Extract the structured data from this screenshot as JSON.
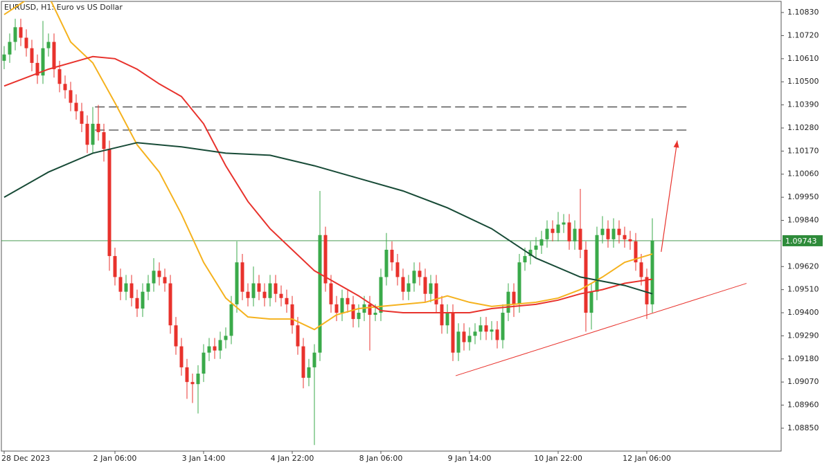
{
  "chart_data": {
    "type": "candlestick",
    "title": "EURUSD, H1:  Euro vs US Dollar",
    "up_color": "#3aaa4a",
    "down_color": "#e8322c",
    "ohlc": [
      [
        1.106,
        1.1067,
        1.1056,
        1.1063
      ],
      [
        1.1063,
        1.1073,
        1.1059,
        1.1069
      ],
      [
        1.1069,
        1.108,
        1.1065,
        1.1076
      ],
      [
        1.1076,
        1.108,
        1.1067,
        1.1071
      ],
      [
        1.1071,
        1.1075,
        1.1062,
        1.1066
      ],
      [
        1.1066,
        1.107,
        1.1055,
        1.1059
      ],
      [
        1.1059,
        1.1063,
        1.1049,
        1.1053
      ],
      [
        1.1053,
        1.1079,
        1.1049,
        1.1066
      ],
      [
        1.1066,
        1.1073,
        1.1062,
        1.1069
      ],
      [
        1.1069,
        1.1073,
        1.1052,
        1.1056
      ],
      [
        1.1056,
        1.106,
        1.1045,
        1.1049
      ],
      [
        1.1049,
        1.1053,
        1.1042,
        1.1046
      ],
      [
        1.1046,
        1.105,
        1.1036,
        1.104
      ],
      [
        1.104,
        1.1044,
        1.1032,
        1.1036
      ],
      [
        1.1036,
        1.104,
        1.1026,
        1.103
      ],
      [
        1.103,
        1.1034,
        1.1016,
        1.102
      ],
      [
        1.102,
        1.1038,
        1.1016,
        1.103
      ],
      [
        1.103,
        1.1039,
        1.1022,
        1.1026
      ],
      [
        1.1026,
        1.103,
        1.1012,
        1.1018
      ],
      [
        1.1018,
        1.1022,
        1.096,
        1.0967
      ],
      [
        1.0967,
        1.0971,
        1.0953,
        1.0957
      ],
      [
        1.0957,
        1.0961,
        1.0946,
        1.095
      ],
      [
        1.095,
        1.0958,
        1.0946,
        1.0954
      ],
      [
        1.0954,
        1.0958,
        1.0943,
        1.0947
      ],
      [
        1.0947,
        1.0951,
        1.0938,
        1.0942
      ],
      [
        1.0942,
        1.0954,
        1.0938,
        1.095
      ],
      [
        1.095,
        1.0958,
        1.0946,
        1.0954
      ],
      [
        1.0954,
        1.0966,
        1.095,
        1.096
      ],
      [
        1.096,
        1.0964,
        1.0953,
        1.0957
      ],
      [
        1.0957,
        1.0961,
        1.095,
        1.0954
      ],
      [
        1.0954,
        1.0958,
        1.093,
        1.0934
      ],
      [
        1.0934,
        1.0938,
        1.092,
        1.0924
      ],
      [
        1.0924,
        1.0928,
        1.091,
        1.0914
      ],
      [
        1.0914,
        1.0918,
        1.0899,
        1.0907
      ],
      [
        1.0907,
        1.0911,
        1.0897,
        1.0906
      ],
      [
        1.0906,
        1.0915,
        1.0892,
        1.0911
      ],
      [
        1.0911,
        1.0925,
        1.0907,
        1.0921
      ],
      [
        1.0921,
        1.0928,
        1.0917,
        1.0924
      ],
      [
        1.0924,
        1.0928,
        1.0918,
        1.0922
      ],
      [
        1.0922,
        1.0931,
        1.0918,
        1.0927
      ],
      [
        1.0927,
        1.0933,
        1.0923,
        1.0929
      ],
      [
        1.0929,
        1.0948,
        1.0925,
        1.0944
      ],
      [
        1.0944,
        1.0974,
        1.094,
        1.0964
      ],
      [
        1.0964,
        1.0968,
        1.0946,
        1.095
      ],
      [
        1.095,
        1.0954,
        1.0943,
        1.0947
      ],
      [
        1.0947,
        1.0962,
        1.0943,
        1.0954
      ],
      [
        1.0954,
        1.0958,
        1.0946,
        1.095
      ],
      [
        1.095,
        1.0954,
        1.0943,
        1.0947
      ],
      [
        1.0947,
        1.0958,
        1.0943,
        1.0954
      ],
      [
        1.0954,
        1.0958,
        1.0945,
        1.0949
      ],
      [
        1.0949,
        1.0953,
        1.0943,
        1.0947
      ],
      [
        1.0947,
        1.0951,
        1.094,
        1.0944
      ],
      [
        1.0944,
        1.0948,
        1.093,
        1.0934
      ],
      [
        1.0934,
        1.0938,
        1.092,
        1.0924
      ],
      [
        1.0924,
        1.0928,
        1.0904,
        1.0909
      ],
      [
        1.0909,
        1.0918,
        1.0905,
        1.0914
      ],
      [
        1.0914,
        1.0925,
        1.0877,
        1.0921
      ],
      [
        1.0921,
        1.0998,
        1.0917,
        1.0977
      ],
      [
        1.0977,
        1.0981,
        1.095,
        1.0954
      ],
      [
        1.0954,
        1.0958,
        1.094,
        1.0944
      ],
      [
        1.0944,
        1.0948,
        1.0936,
        1.094
      ],
      [
        1.094,
        1.0951,
        1.0936,
        1.0947
      ],
      [
        1.0947,
        1.0951,
        1.094,
        1.0944
      ],
      [
        1.0944,
        1.0948,
        1.0933,
        1.0937
      ],
      [
        1.0937,
        1.0944,
        1.0933,
        1.094
      ],
      [
        1.094,
        1.0948,
        1.0936,
        1.0944
      ],
      [
        1.0944,
        1.0948,
        1.0922,
        1.0939
      ],
      [
        1.0939,
        1.0944,
        1.0936,
        1.094
      ],
      [
        1.094,
        1.0961,
        1.0936,
        1.0957
      ],
      [
        1.0957,
        1.0978,
        1.0953,
        1.097
      ],
      [
        1.097,
        1.0974,
        1.096,
        1.0964
      ],
      [
        1.0964,
        1.0968,
        1.0953,
        1.0957
      ],
      [
        1.0957,
        1.0961,
        1.0946,
        1.095
      ],
      [
        1.095,
        1.0958,
        1.0946,
        1.0954
      ],
      [
        1.0954,
        1.0964,
        1.095,
        1.096
      ],
      [
        1.096,
        1.0964,
        1.0953,
        1.0957
      ],
      [
        1.0957,
        1.0961,
        1.0945,
        1.0949
      ],
      [
        1.0949,
        1.0958,
        1.0945,
        1.0954
      ],
      [
        1.0954,
        1.0958,
        1.094,
        1.0944
      ],
      [
        1.0944,
        1.0948,
        1.093,
        1.0934
      ],
      [
        1.0934,
        1.0944,
        1.093,
        1.094
      ],
      [
        1.094,
        1.0944,
        1.0917,
        1.0921
      ],
      [
        1.0921,
        1.0935,
        1.0917,
        1.0931
      ],
      [
        1.0931,
        1.0935,
        1.0922,
        1.0926
      ],
      [
        1.0926,
        1.0933,
        1.0922,
        1.0929
      ],
      [
        1.0929,
        1.0935,
        1.0925,
        1.0931
      ],
      [
        1.0931,
        1.0938,
        1.0927,
        1.0934
      ],
      [
        1.0934,
        1.0938,
        1.0927,
        1.0931
      ],
      [
        1.0931,
        1.0936,
        1.0927,
        1.0932
      ],
      [
        1.0932,
        1.0936,
        1.0923,
        1.0927
      ],
      [
        1.0927,
        1.0944,
        1.0923,
        1.094
      ],
      [
        1.094,
        1.0954,
        1.0936,
        1.095
      ],
      [
        1.095,
        1.0954,
        1.0938,
        1.0944
      ],
      [
        1.0944,
        1.0968,
        1.094,
        1.0964
      ],
      [
        1.0964,
        1.0971,
        1.096,
        1.0967
      ],
      [
        1.0967,
        1.0974,
        1.0963,
        1.097
      ],
      [
        1.097,
        1.0976,
        1.0966,
        1.0972
      ],
      [
        1.0972,
        1.0979,
        1.0968,
        1.0975
      ],
      [
        1.0975,
        1.0984,
        1.0971,
        1.098
      ],
      [
        1.098,
        1.0984,
        1.0974,
        1.0978
      ],
      [
        1.0978,
        1.0988,
        1.0974,
        1.0982
      ],
      [
        1.0982,
        1.0987,
        1.0978,
        1.0983
      ],
      [
        1.0983,
        1.0987,
        1.097,
        1.0974
      ],
      [
        1.0974,
        1.0984,
        1.097,
        1.098
      ],
      [
        1.098,
        1.0999,
        1.0966,
        1.097
      ],
      [
        1.097,
        1.0974,
        1.0931,
        1.094
      ],
      [
        1.094,
        1.0954,
        1.0932,
        1.095
      ],
      [
        1.095,
        1.0981,
        1.0946,
        1.0977
      ],
      [
        1.0977,
        1.0986,
        1.0973,
        1.098
      ],
      [
        1.098,
        1.0984,
        1.0971,
        1.0975
      ],
      [
        1.0975,
        1.0985,
        1.0971,
        1.098
      ],
      [
        1.098,
        1.0984,
        1.0973,
        1.0977
      ],
      [
        1.0977,
        1.0981,
        1.0971,
        1.0975
      ],
      [
        1.0975,
        1.0979,
        1.097,
        1.0974
      ],
      [
        1.0974,
        1.0978,
        1.096,
        1.0964
      ],
      [
        1.0964,
        1.0968,
        1.0953,
        1.0957
      ],
      [
        1.0957,
        1.0961,
        1.0937,
        1.0944
      ],
      [
        1.0944,
        1.0985,
        1.094,
        1.09743
      ]
    ],
    "series": [
      {
        "color": "#f5b21e",
        "x": [
          0,
          4,
          8,
          12,
          16,
          20,
          24,
          28,
          32,
          36,
          40,
          44,
          48,
          52,
          56,
          60,
          64,
          68,
          72,
          76,
          80,
          84,
          88,
          92,
          96,
          100,
          104,
          108,
          112,
          117
        ],
        "values": [
          1.1082,
          1.1089,
          1.1091,
          1.1069,
          1.1059,
          1.104,
          1.102,
          1.1007,
          1.0987,
          1.0964,
          1.0947,
          1.0938,
          1.0937,
          1.0937,
          1.0932,
          1.0939,
          1.0942,
          1.0943,
          1.0944,
          1.0945,
          1.0948,
          1.0945,
          1.0943,
          1.0944,
          1.0945,
          1.0947,
          1.0951,
          1.0957,
          1.0964,
          1.0968
        ]
      },
      {
        "color": "#e8322c",
        "x": [
          0,
          8,
          16,
          20,
          24,
          28,
          32,
          36,
          40,
          44,
          48,
          52,
          56,
          60,
          64,
          68,
          72,
          76,
          80,
          84,
          88,
          92,
          96,
          100,
          104,
          108,
          112,
          117
        ],
        "values": [
          1.1048,
          1.1056,
          1.1062,
          1.1061,
          1.1056,
          1.1049,
          1.1043,
          1.103,
          1.101,
          1.0993,
          1.098,
          1.097,
          1.096,
          1.0954,
          1.0948,
          1.0941,
          1.094,
          1.094,
          1.094,
          1.094,
          1.0942,
          1.0943,
          1.0944,
          1.0946,
          1.0949,
          1.0951,
          1.0954,
          1.0956
        ]
      },
      {
        "color": "#174a36",
        "x": [
          0,
          8,
          16,
          24,
          32,
          40,
          48,
          56,
          64,
          72,
          80,
          88,
          96,
          104,
          112,
          117
        ],
        "values": [
          1.0995,
          1.1007,
          1.1016,
          1.1021,
          1.1019,
          1.1016,
          1.1015,
          1.101,
          1.1004,
          1.0998,
          1.099,
          1.098,
          1.0966,
          1.0957,
          1.0953,
          1.0949
        ]
      }
    ],
    "levels": [
      1.1038,
      1.1027
    ],
    "levels_x": [
      16.4,
      123.9
    ],
    "level_color": "#111111",
    "trendline": {
      "x": [
        81.5,
        134
      ],
      "y": [
        1.091,
        1.0954
      ],
      "color": "#e8322c"
    },
    "arrow": {
      "x": [
        118.6,
        121.5
      ],
      "y": [
        1.0969,
        1.1022
      ],
      "color": "#e8322c"
    },
    "last_price": 1.09743,
    "last_price_color": "#2e8b3a",
    "xlim": [
      -0.5,
      140.25
    ],
    "ylim": [
      1.08741,
      1.10883
    ],
    "xticks": [
      {
        "value": 0,
        "label": "28 Dec 2023"
      },
      {
        "value": 20,
        "label": "2 Jan 06:00"
      },
      {
        "value": 36,
        "label": "3 Jan 14:00"
      },
      {
        "value": 52,
        "label": "4 Jan 22:00"
      },
      {
        "value": 68,
        "label": "8 Jan 06:00"
      },
      {
        "value": 84,
        "label": "9 Jan 14:00"
      },
      {
        "value": 100,
        "label": "10 Jan 22:00"
      },
      {
        "value": 116,
        "label": "12 Jan 06:00"
      }
    ],
    "yticks": [
      {
        "value": 1.1083,
        "label": "1.10830"
      },
      {
        "value": 1.1072,
        "label": "1.10720"
      },
      {
        "value": 1.1061,
        "label": "1.10610"
      },
      {
        "value": 1.105,
        "label": "1.10500"
      },
      {
        "value": 1.1039,
        "label": "1.10390"
      },
      {
        "value": 1.1028,
        "label": "1.10280"
      },
      {
        "value": 1.1017,
        "label": "1.10170"
      },
      {
        "value": 1.1006,
        "label": "1.10060"
      },
      {
        "value": 1.0995,
        "label": "1.09950"
      },
      {
        "value": 1.0984,
        "label": "1.09840"
      },
      {
        "value": 1.0962,
        "label": "1.09620"
      },
      {
        "value": 1.0951,
        "label": "1.09510"
      },
      {
        "value": 1.094,
        "label": "1.09400"
      },
      {
        "value": 1.0929,
        "label": "1.09290"
      },
      {
        "value": 1.0918,
        "label": "1.09180"
      },
      {
        "value": 1.0907,
        "label": "1.09070"
      },
      {
        "value": 1.0896,
        "label": "1.08960"
      },
      {
        "value": 1.0885,
        "label": "1.08850"
      }
    ]
  }
}
